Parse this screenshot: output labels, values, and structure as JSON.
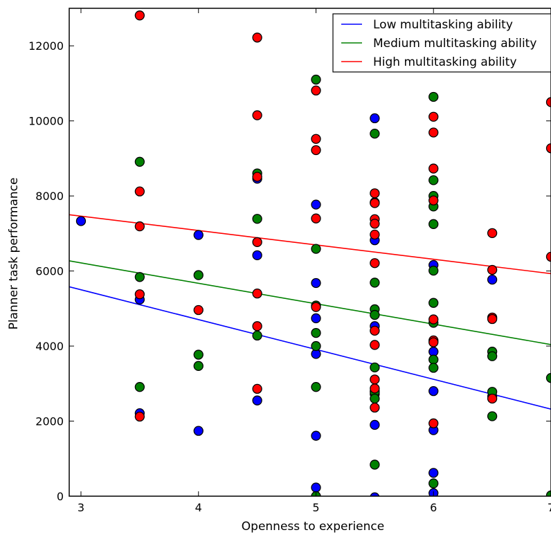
{
  "chart_data": {
    "type": "scatter",
    "title": "",
    "xlabel": "Openness to experience",
    "ylabel": "Planner task performance",
    "xlim": [
      2.9,
      7.0
    ],
    "ylim": [
      0,
      13000
    ],
    "xticks": [
      3,
      4,
      5,
      6,
      7
    ],
    "yticks": [
      0,
      2000,
      4000,
      6000,
      8000,
      10000,
      12000
    ],
    "grid": false,
    "legend_position": "top-right",
    "series": [
      {
        "name": "Low multitasking ability",
        "color": "#0000ff",
        "fit_line": {
          "x": [
            2.9,
            7.0
          ],
          "y": [
            5580,
            2320
          ]
        },
        "points": [
          [
            3.0,
            7330
          ],
          [
            3.5,
            5240
          ],
          [
            3.5,
            2210
          ],
          [
            4.0,
            6960
          ],
          [
            4.0,
            1740
          ],
          [
            4.5,
            8460
          ],
          [
            4.5,
            6420
          ],
          [
            4.5,
            2550
          ],
          [
            5.0,
            7770
          ],
          [
            5.0,
            5680
          ],
          [
            5.0,
            4740
          ],
          [
            5.0,
            3790
          ],
          [
            5.0,
            1610
          ],
          [
            5.0,
            230
          ],
          [
            5.5,
            10070
          ],
          [
            5.5,
            6820
          ],
          [
            5.5,
            4530
          ],
          [
            5.5,
            2800
          ],
          [
            5.5,
            2720
          ],
          [
            5.5,
            1900
          ],
          [
            5.5,
            -30
          ],
          [
            6.0,
            6160
          ],
          [
            6.0,
            3850
          ],
          [
            6.0,
            2800
          ],
          [
            6.0,
            1760
          ],
          [
            6.0,
            620
          ],
          [
            6.0,
            80
          ],
          [
            6.5,
            5770
          ],
          [
            6.5,
            2660
          ]
        ]
      },
      {
        "name": "Medium multitasking ability",
        "color": "#008000",
        "fit_line": {
          "x": [
            2.9,
            7.0
          ],
          "y": [
            6270,
            4040
          ]
        },
        "points": [
          [
            3.5,
            8910
          ],
          [
            3.5,
            5840
          ],
          [
            3.5,
            2910
          ],
          [
            4.0,
            5890
          ],
          [
            4.0,
            3770
          ],
          [
            4.0,
            3470
          ],
          [
            4.5,
            8600
          ],
          [
            4.5,
            7390
          ],
          [
            4.5,
            4280
          ],
          [
            5.0,
            11100
          ],
          [
            5.0,
            6590
          ],
          [
            5.0,
            5080
          ],
          [
            5.0,
            4350
          ],
          [
            5.0,
            4000
          ],
          [
            5.0,
            2910
          ],
          [
            5.0,
            0
          ],
          [
            5.5,
            9660
          ],
          [
            5.5,
            5690
          ],
          [
            5.5,
            4980
          ],
          [
            5.5,
            4830
          ],
          [
            5.5,
            3430
          ],
          [
            5.5,
            2770
          ],
          [
            5.5,
            2600
          ],
          [
            5.5,
            840
          ],
          [
            6.0,
            10640
          ],
          [
            6.0,
            8420
          ],
          [
            6.0,
            8000
          ],
          [
            6.0,
            7720
          ],
          [
            6.0,
            7250
          ],
          [
            6.0,
            6010
          ],
          [
            6.0,
            5150
          ],
          [
            6.0,
            4620
          ],
          [
            6.0,
            3640
          ],
          [
            6.0,
            3420
          ],
          [
            6.0,
            340
          ],
          [
            6.5,
            3850
          ],
          [
            6.5,
            3730
          ],
          [
            6.5,
            2780
          ],
          [
            6.5,
            2130
          ],
          [
            7.0,
            3150
          ],
          [
            7.0,
            20
          ]
        ]
      },
      {
        "name": "High multitasking ability",
        "color": "#ff0000",
        "fit_line": {
          "x": [
            2.9,
            7.0
          ],
          "y": [
            7500,
            5930
          ]
        },
        "points": [
          [
            3.5,
            12810
          ],
          [
            3.5,
            8120
          ],
          [
            3.5,
            7190
          ],
          [
            3.5,
            5380
          ],
          [
            3.5,
            2120
          ],
          [
            4.0,
            4960
          ],
          [
            4.5,
            12220
          ],
          [
            4.5,
            10150
          ],
          [
            4.5,
            8510
          ],
          [
            4.5,
            6770
          ],
          [
            4.5,
            5400
          ],
          [
            4.5,
            4530
          ],
          [
            4.5,
            2860
          ],
          [
            5.0,
            10810
          ],
          [
            5.0,
            9520
          ],
          [
            5.0,
            9220
          ],
          [
            5.0,
            7400
          ],
          [
            5.0,
            5040
          ],
          [
            5.5,
            8070
          ],
          [
            5.5,
            7830
          ],
          [
            5.5,
            7810
          ],
          [
            5.5,
            7380
          ],
          [
            5.5,
            7260
          ],
          [
            5.5,
            6970
          ],
          [
            5.5,
            6210
          ],
          [
            5.5,
            4410
          ],
          [
            5.5,
            4030
          ],
          [
            5.5,
            3110
          ],
          [
            5.5,
            2870
          ],
          [
            5.5,
            2360
          ],
          [
            6.0,
            10110
          ],
          [
            6.0,
            9690
          ],
          [
            6.0,
            8730
          ],
          [
            6.0,
            7880
          ],
          [
            6.0,
            4710
          ],
          [
            6.0,
            4150
          ],
          [
            6.0,
            4100
          ],
          [
            6.0,
            1940
          ],
          [
            6.5,
            7010
          ],
          [
            6.5,
            6030
          ],
          [
            6.5,
            4760
          ],
          [
            6.5,
            4720
          ],
          [
            6.5,
            2600
          ],
          [
            7.0,
            10500
          ],
          [
            7.0,
            9270
          ],
          [
            7.0,
            6380
          ]
        ]
      }
    ]
  }
}
